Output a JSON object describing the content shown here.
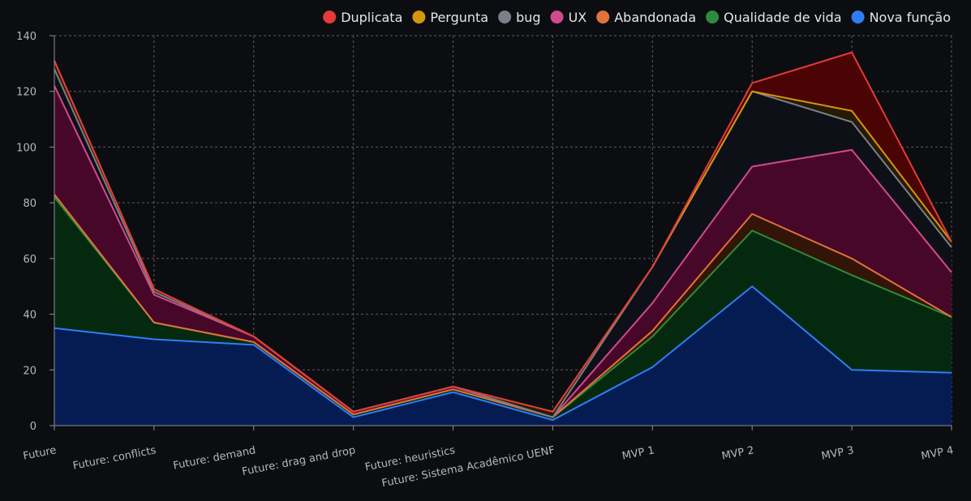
{
  "chart_data": {
    "type": "area",
    "stacked": true,
    "categories": [
      "Future",
      "Future: conflicts",
      "Future: demand",
      "Future: drag and drop",
      "Future: heuristics",
      "Future: Sistema Acadêmico UENF",
      "MVP 1",
      "MVP 2",
      "MVP 3",
      "MVP 4"
    ],
    "series": [
      {
        "name": "Nova função",
        "color": "#2f7df6",
        "fill": "#051c52",
        "values": [
          35,
          31,
          29,
          3,
          12,
          2,
          21,
          50,
          20,
          19
        ]
      },
      {
        "name": "Qualidade de vida",
        "color": "#2e8b3e",
        "fill": "#04290f",
        "values": [
          47,
          6,
          1,
          1,
          1,
          1,
          11,
          20,
          34,
          20
        ]
      },
      {
        "name": "Abandonada",
        "color": "#e0733a",
        "fill": "#331507",
        "values": [
          1,
          0,
          0,
          0,
          0,
          0,
          2,
          6,
          6,
          0
        ]
      },
      {
        "name": "UX",
        "color": "#d04a8e",
        "fill": "#470728",
        "values": [
          39,
          10,
          2,
          1,
          1,
          0,
          10,
          17,
          39,
          16
        ]
      },
      {
        "name": "bug",
        "color": "#7b7f87",
        "fill": "#0e1018",
        "values": [
          6,
          1,
          0,
          0,
          0,
          0,
          13,
          27,
          10,
          9
        ]
      },
      {
        "name": "Pergunta",
        "color": "#d4960f",
        "fill": "#261a04",
        "values": [
          3,
          1,
          0,
          0,
          0,
          2,
          0,
          0,
          4,
          2
        ]
      },
      {
        "name": "Duplicata",
        "color": "#e33a3a",
        "fill": "#4a0404",
        "values": [
          0,
          0,
          0,
          0,
          0,
          0,
          0,
          3,
          21,
          0
        ]
      }
    ],
    "legend_order": [
      "Duplicata",
      "Pergunta",
      "bug",
      "UX",
      "Abandonada",
      "Qualidade de vida",
      "Nova função"
    ],
    "legend_position": "top-right",
    "ylim": [
      0,
      140
    ],
    "yticks": [
      0,
      20,
      40,
      60,
      80,
      100,
      120,
      140
    ],
    "grid": true,
    "grid_color": "#5a5d66",
    "axis_color": "#8e9199",
    "title": "",
    "xlabel": "",
    "ylabel": ""
  }
}
